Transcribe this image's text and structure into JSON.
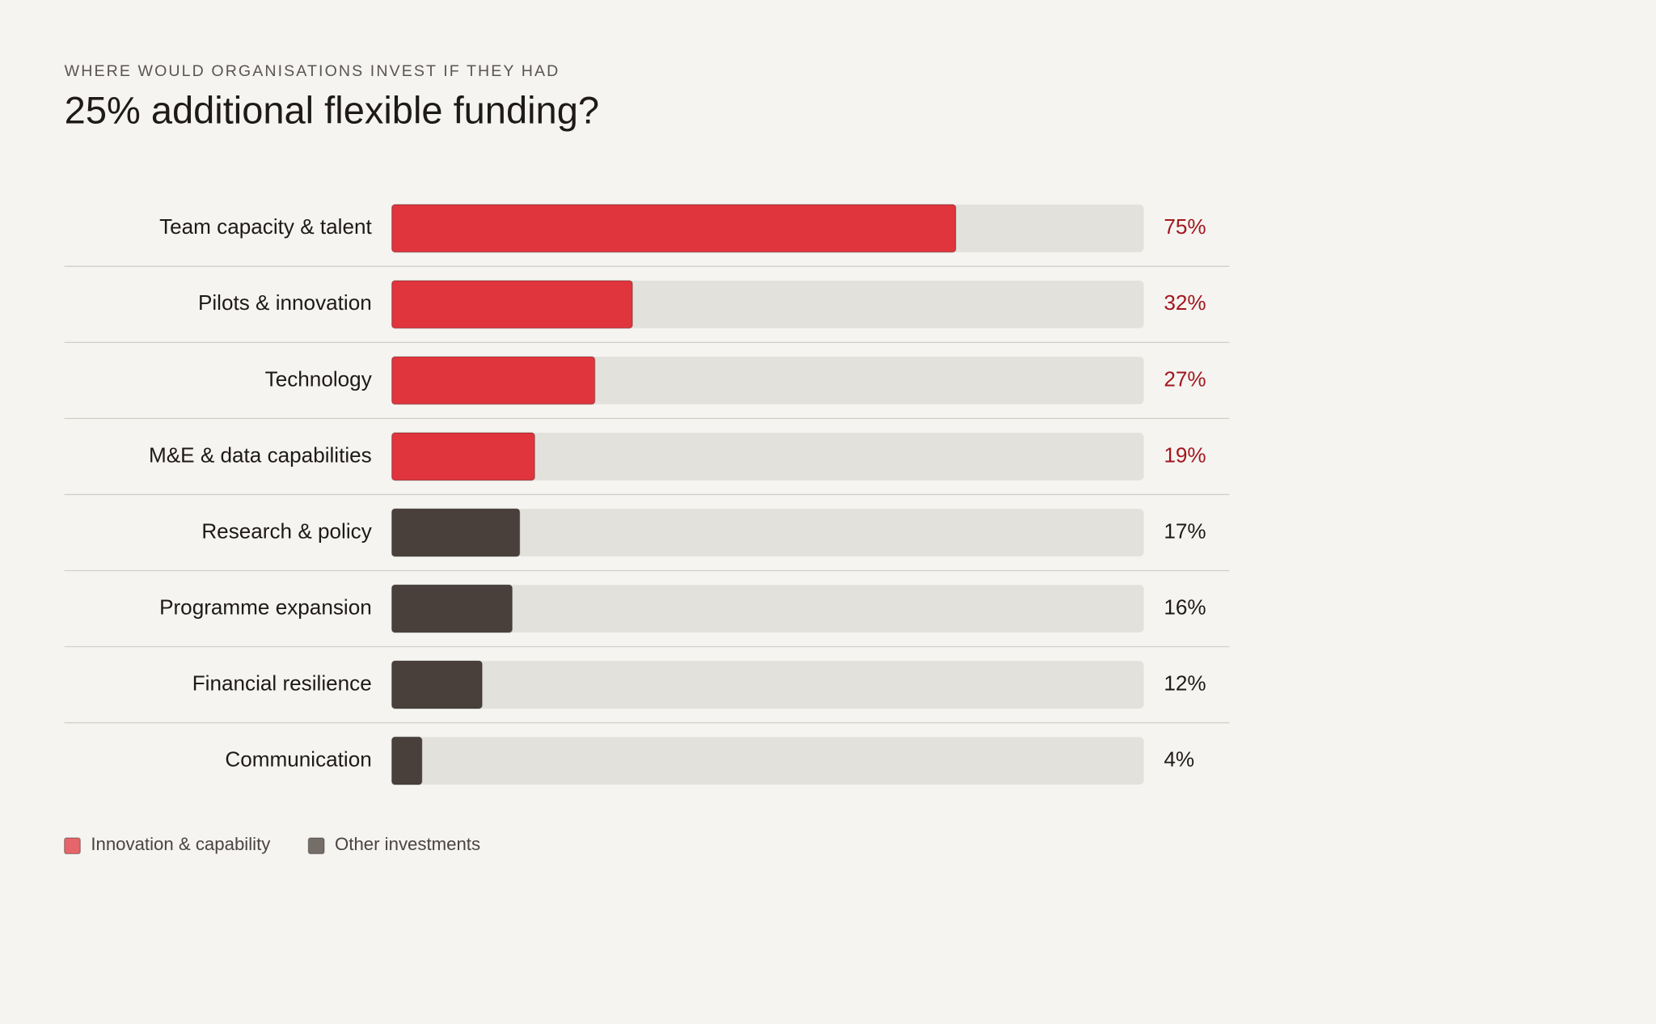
{
  "chart_data": {
    "type": "hbar",
    "subtitle": "WHERE WOULD ORGANISATIONS INVEST IF THEY HAD",
    "title": "25% additional flexible funding?",
    "categories": [
      "Team capacity & talent",
      "Pilots & innovation",
      "Technology",
      "M&E & data capabilities",
      "Research & policy",
      "Programme expansion",
      "Financial resilience",
      "Communication"
    ],
    "series": [
      {
        "name": "Innovation & capability",
        "color": "#e0353d",
        "label_color": "#a3161f",
        "values": [
          75,
          32,
          27,
          19,
          null,
          null,
          null,
          null
        ],
        "value_labels": [
          "75%",
          "32%",
          "27%",
          "19%",
          null,
          null,
          null,
          null
        ]
      },
      {
        "name": "Other investments",
        "color": "#4a403b",
        "label_color": "#1e1a19",
        "values": [
          null,
          null,
          null,
          null,
          17,
          16,
          12,
          4
        ],
        "value_labels": [
          null,
          null,
          null,
          null,
          "17%",
          "16%",
          "12%",
          "4%"
        ]
      }
    ],
    "xlim": [
      0,
      100
    ]
  }
}
